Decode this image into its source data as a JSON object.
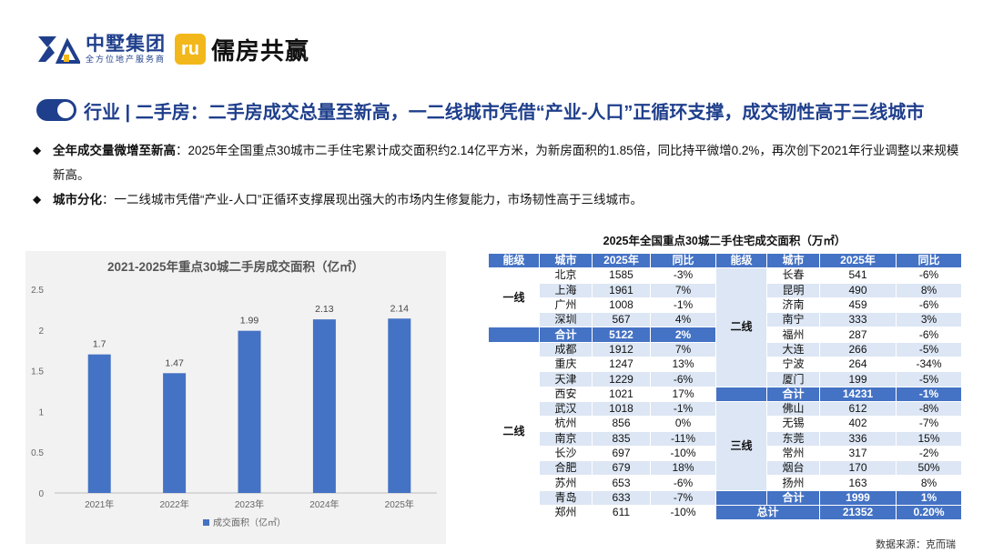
{
  "header": {
    "company_name": "中墅集团",
    "company_sub": "全方位地产服务商",
    "brand_mark": "ru",
    "brand_name": "儒房共赢"
  },
  "title": "行业 | 二手房：二手房成交总量至新高，一二线城市凭借“产业-人口”正循环支撑，成交韧性高于三线城市",
  "bullets": [
    {
      "mark": "◆",
      "label": "全年成交量微增至新高",
      "text": "：2025年全国重点30城市二手住宅累计成交面积约2.14亿平方米，为新房面积的1.85倍，同比持平微增0.2%，再次创下2021年行业调整以来规模新高。"
    },
    {
      "mark": "◆",
      "label": "城市分化",
      "text": "：一二线城市凭借“产业-人口”正循环支撑展现出强大的市场内生修复能力，市场韧性高于三线城市。"
    }
  ],
  "chart_data": {
    "type": "bar",
    "title": "2021-2025年重点30城二手房成交面积（亿㎡）",
    "categories": [
      "2021年",
      "2022年",
      "2023年",
      "2024年",
      "2025年"
    ],
    "series": [
      {
        "name": "成交面积（亿㎡）",
        "values": [
          1.7,
          1.47,
          1.99,
          2.13,
          2.14
        ],
        "color": "#4472c4"
      }
    ],
    "ylim": [
      0,
      2.5
    ],
    "yticks": [
      0,
      0.5,
      1,
      1.5,
      2,
      2.5
    ],
    "ytick_labels": [
      "0",
      "0.5",
      "1",
      "1.5",
      "2",
      "2.5"
    ],
    "data_labels": [
      "1.7",
      "1.47",
      "1.99",
      "2.13",
      "2.14"
    ],
    "legend": "bottom",
    "grid": false
  },
  "table": {
    "title": "2025年全国重点30城二手住宅成交面积（万㎡）",
    "headers": [
      "能级",
      "城市",
      "2025年",
      "同比",
      "能级",
      "城市",
      "2025年",
      "同比"
    ],
    "left": [
      {
        "level": "一线",
        "span": 4,
        "rows": [
          [
            "北京",
            "1585",
            "-3%"
          ],
          [
            "上海",
            "1961",
            "7%"
          ],
          [
            "广州",
            "1008",
            "-1%"
          ],
          [
            "深圳",
            "567",
            "4%"
          ]
        ]
      },
      {
        "total": [
          "合计",
          "5122",
          "2%"
        ]
      },
      {
        "level": "二线",
        "span": 12,
        "rows": [
          [
            "成都",
            "1912",
            "7%"
          ],
          [
            "重庆",
            "1247",
            "13%"
          ],
          [
            "天津",
            "1229",
            "-6%"
          ],
          [
            "西安",
            "1021",
            "17%"
          ],
          [
            "武汉",
            "1018",
            "-1%"
          ],
          [
            "杭州",
            "856",
            "0%"
          ],
          [
            "南京",
            "835",
            "-11%"
          ],
          [
            "长沙",
            "697",
            "-10%"
          ],
          [
            "合肥",
            "679",
            "18%"
          ],
          [
            "苏州",
            "653",
            "-6%"
          ],
          [
            "青岛",
            "633",
            "-7%"
          ],
          [
            "郑州",
            "611",
            "-10%"
          ]
        ]
      }
    ],
    "right": [
      {
        "level": "二线",
        "span": 8,
        "rows": [
          [
            "长春",
            "541",
            "-6%"
          ],
          [
            "昆明",
            "490",
            "8%"
          ],
          [
            "济南",
            "459",
            "-6%"
          ],
          [
            "南宁",
            "333",
            "3%"
          ],
          [
            "福州",
            "287",
            "-6%"
          ],
          [
            "大连",
            "266",
            "-5%"
          ],
          [
            "宁波",
            "264",
            "-34%"
          ],
          [
            "厦门",
            "199",
            "-5%"
          ]
        ]
      },
      {
        "total": [
          "合计",
          "14231",
          "-1%"
        ]
      },
      {
        "level": "三线",
        "span": 6,
        "rows": [
          [
            "佛山",
            "612",
            "-8%"
          ],
          [
            "无锡",
            "402",
            "-7%"
          ],
          [
            "东莞",
            "336",
            "15%"
          ],
          [
            "常州",
            "317",
            "-2%"
          ],
          [
            "烟台",
            "170",
            "50%"
          ],
          [
            "扬州",
            "163",
            "8%"
          ]
        ]
      },
      {
        "total": [
          "合计",
          "1999",
          "1%"
        ]
      },
      {
        "grand": [
          "总计",
          "21352",
          "0.20%"
        ]
      }
    ]
  },
  "source": "数据来源：克而瑞"
}
